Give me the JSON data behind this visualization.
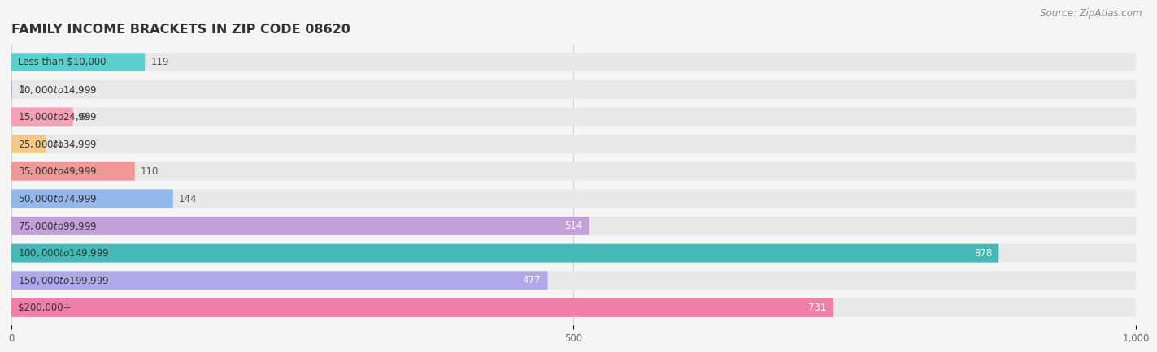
{
  "title": "FAMILY INCOME BRACKETS IN ZIP CODE 08620",
  "source": "Source: ZipAtlas.com",
  "categories": [
    "Less than $10,000",
    "$10,000 to $14,999",
    "$15,000 to $24,999",
    "$25,000 to $34,999",
    "$35,000 to $49,999",
    "$50,000 to $74,999",
    "$75,000 to $99,999",
    "$100,000 to $149,999",
    "$150,000 to $199,999",
    "$200,000+"
  ],
  "values": [
    119,
    0,
    55,
    31,
    110,
    144,
    514,
    878,
    477,
    731
  ],
  "colors": [
    "#5DCECE",
    "#ADA8DC",
    "#F4A0B5",
    "#F5C98A",
    "#F09898",
    "#92B8EA",
    "#C4A0D8",
    "#46B8B8",
    "#B0A8E8",
    "#F080A8"
  ],
  "xlim": [
    0,
    1000
  ],
  "xticks": [
    0,
    500,
    1000
  ],
  "xtick_labels": [
    "0",
    "500",
    "1,000"
  ],
  "background_color": "#f5f5f5",
  "bar_bg_color": "#e8e8e8",
  "value_color_dark": "#555555",
  "value_color_light": "#ffffff",
  "title_fontsize": 11.5,
  "label_fontsize": 8.5,
  "value_fontsize": 8.5,
  "source_fontsize": 8.5,
  "threshold_inside": 250
}
